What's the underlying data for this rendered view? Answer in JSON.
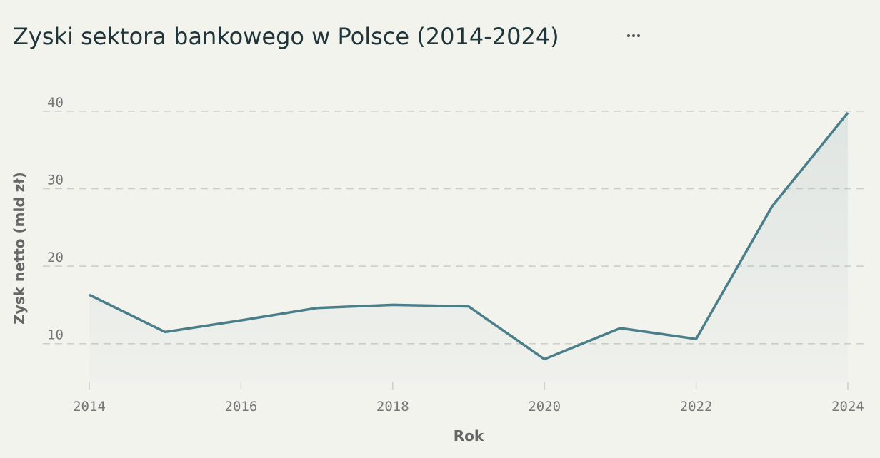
{
  "chart_data": {
    "type": "line",
    "title": "Zyski sektora bankowego w Polsce (2014-2024)",
    "x_label": "Rok",
    "y_label": "Zysk netto (mld zł)",
    "x": [
      2014,
      2015,
      2016,
      2017,
      2018,
      2019,
      2020,
      2021,
      2022,
      2023,
      2024
    ],
    "series": [
      {
        "color": "#4a7f8a",
        "values": [
          16.3,
          11.5,
          13.0,
          14.6,
          15.0,
          14.8,
          8.0,
          12.0,
          10.6,
          27.7,
          39.8
        ]
      }
    ],
    "xlim": [
      2014,
      2024
    ],
    "xticks": [
      2014,
      2016,
      2018,
      2020,
      2022,
      2024
    ],
    "ylim": [
      5,
      41
    ],
    "yticks": [
      10,
      20,
      30,
      40
    ],
    "grid": true,
    "area": true
  }
}
